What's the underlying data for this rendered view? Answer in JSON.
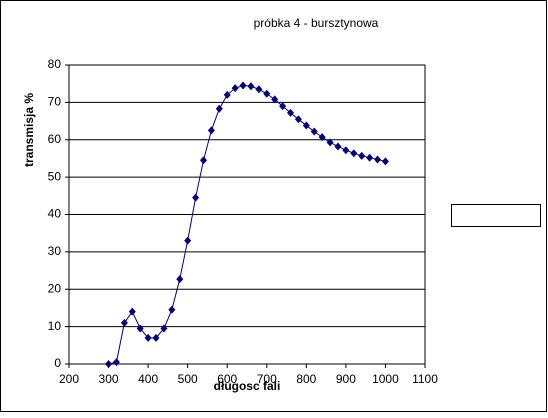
{
  "chart_data": {
    "type": "line",
    "title": "próbka 4 - bursztynowa",
    "x_label": "długosc fali",
    "y_label": "transmisja %",
    "x": [
      300,
      320,
      340,
      360,
      380,
      400,
      420,
      440,
      460,
      480,
      500,
      520,
      540,
      560,
      580,
      600,
      620,
      640,
      660,
      680,
      700,
      720,
      740,
      760,
      780,
      800,
      820,
      840,
      860,
      880,
      900,
      920,
      940,
      960,
      980,
      1000
    ],
    "series": [
      {
        "color": "#000080",
        "values": [
          0,
          0.5,
          11,
          14,
          9.5,
          7,
          7,
          9.5,
          14.5,
          22.7,
          33,
          44.5,
          54.5,
          62.5,
          68.3,
          72,
          73.8,
          74.5,
          74.3,
          73.5,
          72.3,
          70.8,
          69,
          67.2,
          65.5,
          63.8,
          62.2,
          60.7,
          59.3,
          58.2,
          57.2,
          56.4,
          55.7,
          55.2,
          54.7,
          54.2
        ]
      }
    ],
    "xlim": [
      200,
      1100
    ],
    "xticks": [
      200,
      300,
      400,
      500,
      600,
      700,
      800,
      900,
      1000,
      1100
    ],
    "ylim": [
      0,
      80
    ],
    "yticks": [
      0,
      10,
      20,
      30,
      40,
      50,
      60,
      70,
      80
    ],
    "grid": true
  }
}
